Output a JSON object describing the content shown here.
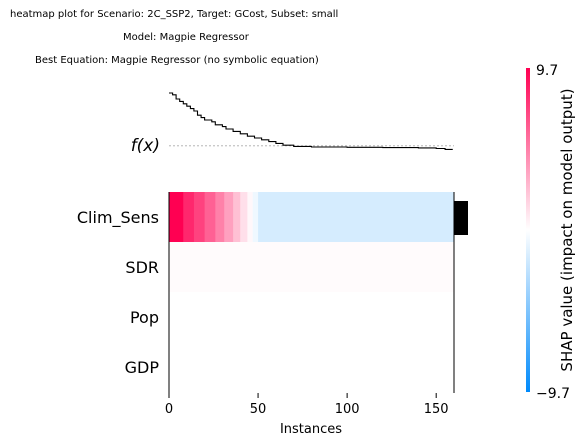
{
  "title_lines": [
    "heatmap plot for Scenario: 2C_SSP2, Target: GCost, Subset: small",
    "Model: Magpie Regressor",
    "Best Equation: Magpie Regressor (no symbolic equation)"
  ],
  "chart_data": {
    "type": "heatmap",
    "n_instances": 160,
    "xlabel": "Instances",
    "xticks": [
      0,
      50,
      100,
      150
    ],
    "fx_label": "f(x)",
    "features": [
      "Clim_Sens",
      "SDR",
      "Pop",
      "GDP"
    ],
    "colorbar": {
      "label": "SHAP value (impact on model output)",
      "max_label": "9.7",
      "min_label": "−9.7",
      "vmax": 9.7,
      "vmin": -9.7,
      "colors": {
        "high": "#ff0052",
        "mid": "#ffffff",
        "low": "#008afb"
      }
    },
    "clim_sens_segments": [
      {
        "start": 0,
        "end": 8,
        "value": 9.7
      },
      {
        "start": 8,
        "end": 14,
        "value": 8.2
      },
      {
        "start": 14,
        "end": 20,
        "value": 7.2
      },
      {
        "start": 20,
        "end": 26,
        "value": 6.0
      },
      {
        "start": 26,
        "end": 31,
        "value": 4.8
      },
      {
        "start": 31,
        "end": 36,
        "value": 3.6
      },
      {
        "start": 36,
        "end": 40,
        "value": 2.4
      },
      {
        "start": 40,
        "end": 44,
        "value": 1.2
      },
      {
        "start": 44,
        "end": 47,
        "value": 0.3
      },
      {
        "start": 47,
        "end": 50,
        "value": -0.6
      },
      {
        "start": 50,
        "end": 160,
        "value": -1.6
      }
    ],
    "faint_rows": [
      {
        "feature": "SDR",
        "value": 0.15
      },
      {
        "feature": "Pop",
        "value": 0.0
      },
      {
        "feature": "GDP",
        "value": 0.0
      }
    ],
    "importance_bar": {
      "feature": "Clim_Sens",
      "value": 1.0
    },
    "fx_points": [
      [
        0,
        1.0
      ],
      [
        2,
        0.97
      ],
      [
        4,
        0.9
      ],
      [
        6,
        0.86
      ],
      [
        8,
        0.82
      ],
      [
        10,
        0.78
      ],
      [
        12,
        0.74
      ],
      [
        14,
        0.7
      ],
      [
        16,
        0.63
      ],
      [
        18,
        0.59
      ],
      [
        20,
        0.55
      ],
      [
        24,
        0.52
      ],
      [
        26,
        0.47
      ],
      [
        30,
        0.44
      ],
      [
        32,
        0.4
      ],
      [
        36,
        0.36
      ],
      [
        40,
        0.32
      ],
      [
        44,
        0.28
      ],
      [
        48,
        0.25
      ],
      [
        52,
        0.22
      ],
      [
        56,
        0.19
      ],
      [
        60,
        0.16
      ],
      [
        64,
        0.13
      ],
      [
        70,
        0.11
      ],
      [
        80,
        0.1
      ],
      [
        100,
        0.095
      ],
      [
        120,
        0.09
      ],
      [
        140,
        0.085
      ],
      [
        150,
        0.075
      ],
      [
        155,
        0.06
      ],
      [
        159,
        0.05
      ]
    ],
    "fx_baseline": 0.12
  }
}
